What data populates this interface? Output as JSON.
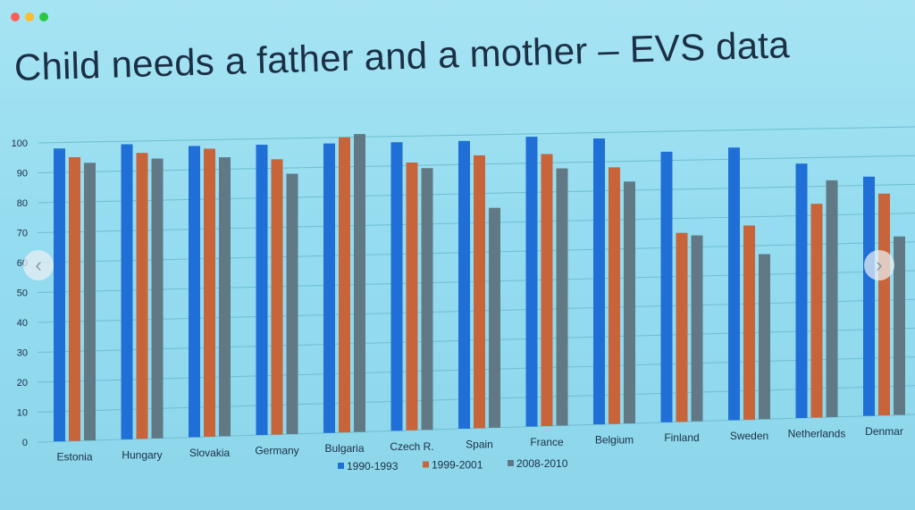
{
  "title": "Child needs a father and a mother – EVS data",
  "navigation": {
    "prev_icon": "‹",
    "next_icon": "›"
  },
  "colors": {
    "series1": "#1f6fd6",
    "series2": "#c8643a",
    "series3": "#607985"
  },
  "chart_data": {
    "type": "bar",
    "title": "Child needs a father and a mother – EVS data",
    "xlabel": "",
    "ylabel": "",
    "ylim": [
      0,
      100
    ],
    "yticks": [
      0,
      10,
      20,
      30,
      40,
      50,
      60,
      70,
      80,
      90,
      100
    ],
    "grid": true,
    "legend": "bottom",
    "categories": [
      "Estonia",
      "Hungary",
      "Slovakia",
      "Germany",
      "Bulgaria",
      "Czech R.",
      "Spain",
      "France",
      "Belgium",
      "Finland",
      "Sweden",
      "Netherlands",
      "Denmark"
    ],
    "category_labels": [
      "Estonia",
      "Hungary",
      "Slovakia",
      "Germany",
      "Bulgaria",
      "Czech R.",
      "Spain",
      "France",
      "Belgium",
      "Finland",
      "Sweden",
      "Netherlands",
      "Denmar"
    ],
    "series": [
      {
        "name": "1990-1993",
        "values": [
          98,
          99,
          98,
          98,
          98,
          98,
          98,
          99,
          98,
          93,
          94,
          88,
          83
        ]
      },
      {
        "name": "1999-2001",
        "values": [
          95,
          96,
          97,
          93,
          100,
          91,
          93,
          93,
          88,
          65,
          67,
          74,
          77
        ]
      },
      {
        "name": "2008-2010",
        "values": [
          93,
          94,
          94,
          88,
          101,
          89,
          75,
          88,
          83,
          64,
          57,
          82,
          62
        ]
      }
    ]
  }
}
